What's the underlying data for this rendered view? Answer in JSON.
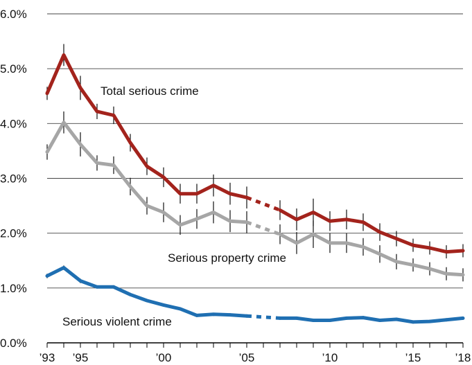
{
  "chart_data": {
    "type": "line",
    "title": "",
    "xlabel": "",
    "ylabel": "",
    "ylim": [
      0,
      6
    ],
    "xlim": [
      1993,
      2018
    ],
    "grid": "horizontal",
    "y_ticks": [
      0,
      1,
      2,
      3,
      4,
      5,
      6
    ],
    "y_tick_labels": [
      "0.0%",
      "1.0%",
      "2.0%",
      "3.0%",
      "4.0%",
      "5.0%",
      "6.0%"
    ],
    "x_ticks": [
      1993,
      1995,
      2000,
      2005,
      2010,
      2015,
      2018
    ],
    "x_tick_labels": [
      "’93",
      "’95",
      "’00",
      "’05",
      "’10",
      "’15",
      "’18"
    ],
    "gap": {
      "from": 2005,
      "to": 2007,
      "style": "dashed"
    },
    "series": [
      {
        "name": "Total serious crime",
        "color": "#a3231c",
        "x": [
          1993,
          1994,
          1995,
          1996,
          1997,
          1998,
          1999,
          2000,
          2001,
          2002,
          2003,
          2004,
          2005,
          2007,
          2008,
          2009,
          2010,
          2011,
          2012,
          2013,
          2014,
          2015,
          2016,
          2017,
          2018
        ],
        "y": [
          4.55,
          5.25,
          4.65,
          4.22,
          4.15,
          3.65,
          3.22,
          3.02,
          2.72,
          2.72,
          2.87,
          2.72,
          2.65,
          2.42,
          2.25,
          2.38,
          2.22,
          2.25,
          2.2,
          2.02,
          1.9,
          1.78,
          1.73,
          1.66,
          1.68
        ],
        "err": [
          0.12,
          0.2,
          0.22,
          0.14,
          0.16,
          0.16,
          0.16,
          0.18,
          0.18,
          0.18,
          0.2,
          0.2,
          0.2,
          0.18,
          0.2,
          0.25,
          0.18,
          0.18,
          0.16,
          0.16,
          0.14,
          0.12,
          0.12,
          0.12,
          0.12
        ]
      },
      {
        "name": "Serious property crime",
        "color": "#a6a6a6",
        "x": [
          1993,
          1994,
          1995,
          1996,
          1997,
          1998,
          1999,
          2000,
          2001,
          2002,
          2003,
          2004,
          2005,
          2007,
          2008,
          2009,
          2010,
          2011,
          2012,
          2013,
          2014,
          2015,
          2016,
          2017,
          2018
        ],
        "y": [
          3.48,
          4.02,
          3.62,
          3.28,
          3.24,
          2.85,
          2.5,
          2.38,
          2.15,
          2.26,
          2.38,
          2.22,
          2.2,
          1.98,
          1.82,
          1.98,
          1.82,
          1.82,
          1.75,
          1.62,
          1.48,
          1.42,
          1.35,
          1.26,
          1.24
        ],
        "err": [
          0.14,
          0.2,
          0.22,
          0.14,
          0.16,
          0.16,
          0.16,
          0.18,
          0.18,
          0.18,
          0.2,
          0.2,
          0.2,
          0.18,
          0.2,
          0.25,
          0.18,
          0.18,
          0.16,
          0.16,
          0.14,
          0.12,
          0.12,
          0.12,
          0.12
        ]
      },
      {
        "name": "Serious violent crime",
        "color": "#1f6fb2",
        "x": [
          1993,
          1994,
          1995,
          1996,
          1997,
          1998,
          1999,
          2000,
          2001,
          2002,
          2003,
          2004,
          2005,
          2007,
          2008,
          2009,
          2010,
          2011,
          2012,
          2013,
          2014,
          2015,
          2016,
          2017,
          2018
        ],
        "y": [
          1.22,
          1.37,
          1.13,
          1.02,
          1.02,
          0.88,
          0.77,
          0.69,
          0.62,
          0.5,
          0.52,
          0.51,
          0.49,
          0.45,
          0.45,
          0.41,
          0.41,
          0.45,
          0.46,
          0.41,
          0.43,
          0.38,
          0.39,
          0.42,
          0.45
        ],
        "err": [
          0.04,
          0.04,
          0.04,
          0.03,
          0.03,
          0.03,
          0.03,
          0.03,
          0.03,
          0.03,
          0.03,
          0.03,
          0.03,
          0.03,
          0.03,
          0.03,
          0.03,
          0.03,
          0.03,
          0.03,
          0.03,
          0.03,
          0.03,
          0.03,
          0.03
        ]
      }
    ],
    "labels": [
      {
        "series": 0,
        "text": "Total serious crime"
      },
      {
        "series": 1,
        "text": "Serious property crime"
      },
      {
        "series": 2,
        "text": "Serious violent crime"
      }
    ]
  }
}
